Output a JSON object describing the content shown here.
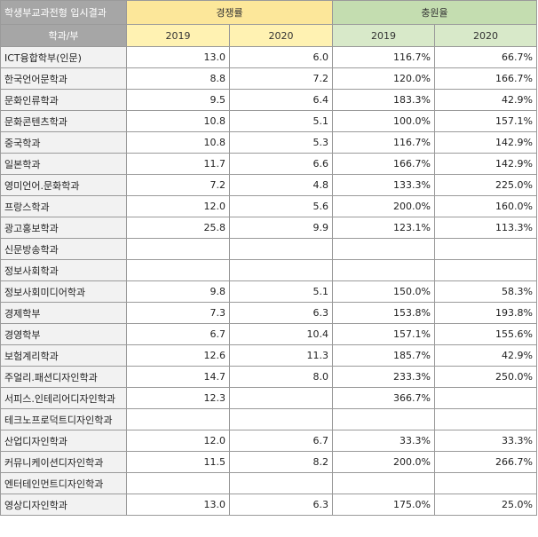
{
  "table": {
    "title": "학생부교과전형 입시결과",
    "dept_header": "학과/부",
    "groups": {
      "competition": "경쟁률",
      "fill_rate": "충원율"
    },
    "years": [
      "2019",
      "2020"
    ],
    "rows": [
      {
        "dept": "ICT융합학부(인문)",
        "c2019": "13.0",
        "c2020": "6.0",
        "f2019": "116.7%",
        "f2020": "66.7%"
      },
      {
        "dept": "한국언어문학과",
        "c2019": "8.8",
        "c2020": "7.2",
        "f2019": "120.0%",
        "f2020": "166.7%"
      },
      {
        "dept": "문화인류학과",
        "c2019": "9.5",
        "c2020": "6.4",
        "f2019": "183.3%",
        "f2020": "42.9%"
      },
      {
        "dept": "문화콘텐츠학과",
        "c2019": "10.8",
        "c2020": "5.1",
        "f2019": "100.0%",
        "f2020": "157.1%"
      },
      {
        "dept": "중국학과",
        "c2019": "10.8",
        "c2020": "5.3",
        "f2019": "116.7%",
        "f2020": "142.9%"
      },
      {
        "dept": "일본학과",
        "c2019": "11.7",
        "c2020": "6.6",
        "f2019": "166.7%",
        "f2020": "142.9%"
      },
      {
        "dept": "영미언어.문화학과",
        "c2019": "7.2",
        "c2020": "4.8",
        "f2019": "133.3%",
        "f2020": "225.0%"
      },
      {
        "dept": "프랑스학과",
        "c2019": "12.0",
        "c2020": "5.6",
        "f2019": "200.0%",
        "f2020": "160.0%"
      },
      {
        "dept": "광고홍보학과",
        "c2019": "25.8",
        "c2020": "9.9",
        "f2019": "123.1%",
        "f2020": "113.3%"
      },
      {
        "dept": "신문방송학과",
        "c2019": "",
        "c2020": "",
        "f2019": "",
        "f2020": ""
      },
      {
        "dept": "정보사회학과",
        "c2019": "",
        "c2020": "",
        "f2019": "",
        "f2020": ""
      },
      {
        "dept": "정보사회미디어학과",
        "c2019": "9.8",
        "c2020": "5.1",
        "f2019": "150.0%",
        "f2020": "58.3%"
      },
      {
        "dept": "경제학부",
        "c2019": "7.3",
        "c2020": "6.3",
        "f2019": "153.8%",
        "f2020": "193.8%"
      },
      {
        "dept": "경영학부",
        "c2019": "6.7",
        "c2020": "10.4",
        "f2019": "157.1%",
        "f2020": "155.6%"
      },
      {
        "dept": "보험계리학과",
        "c2019": "12.6",
        "c2020": "11.3",
        "f2019": "185.7%",
        "f2020": "42.9%"
      },
      {
        "dept": "주얼리.패션디자인학과",
        "c2019": "14.7",
        "c2020": "8.0",
        "f2019": "233.3%",
        "f2020": "250.0%"
      },
      {
        "dept": "서피스.인테리어디자인학과",
        "c2019": "12.3",
        "c2020": "",
        "f2019": "366.7%",
        "f2020": ""
      },
      {
        "dept": "테크노프로덕트디자인학과",
        "c2019": "",
        "c2020": "",
        "f2019": "",
        "f2020": ""
      },
      {
        "dept": "산업디자인학과",
        "c2019": "12.0",
        "c2020": "6.7",
        "f2019": "33.3%",
        "f2020": "33.3%"
      },
      {
        "dept": "커뮤니케이션디자인학과",
        "c2019": "11.5",
        "c2020": "8.2",
        "f2019": "200.0%",
        "f2020": "266.7%"
      },
      {
        "dept": "엔터테인먼트디자인학과",
        "c2019": "",
        "c2020": "",
        "f2019": "",
        "f2020": ""
      },
      {
        "dept": "영상디자인학과",
        "c2019": "13.0",
        "c2020": "6.3",
        "f2019": "175.0%",
        "f2020": "25.0%"
      }
    ]
  }
}
